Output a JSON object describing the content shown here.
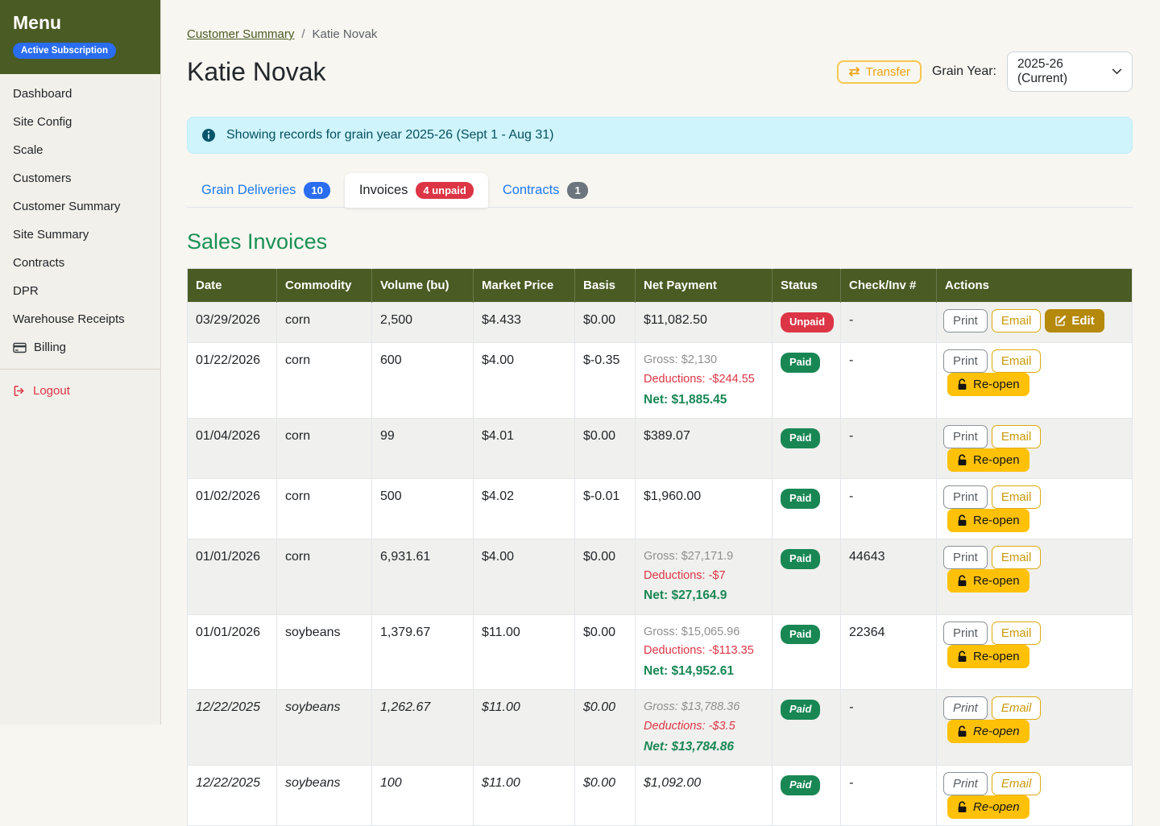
{
  "sidebar": {
    "title": "Menu",
    "subscription_badge": "Active Subscription",
    "items": [
      {
        "label": "Dashboard",
        "icon": null
      },
      {
        "label": "Site Config",
        "icon": null
      },
      {
        "label": "Scale",
        "icon": null
      },
      {
        "label": "Customers",
        "icon": null
      },
      {
        "label": "Customer Summary",
        "icon": null
      },
      {
        "label": "Site Summary",
        "icon": null
      },
      {
        "label": "Contracts",
        "icon": null
      },
      {
        "label": "DPR",
        "icon": null
      },
      {
        "label": "Warehouse Receipts",
        "icon": null
      },
      {
        "label": "Billing",
        "icon": "credit-card-icon"
      }
    ],
    "logout_label": "Logout"
  },
  "header": {
    "breadcrumb_link": "Customer Summary",
    "breadcrumb_separator": "/",
    "breadcrumb_current": "Katie Novak",
    "title": "Katie Novak",
    "transfer_label": "Transfer",
    "transfer_icon": "transfer-arrows-icon",
    "grain_year_label": "Grain Year:",
    "grain_year_value": "2025-26 (Current)"
  },
  "alert": {
    "icon": "info-icon",
    "message": "Showing records for grain year 2025-26 (Sept 1 - Aug 31)"
  },
  "tabs": [
    {
      "label": "Grain Deliveries",
      "badge": "10",
      "badge_style": "blue",
      "active": false
    },
    {
      "label": "Invoices",
      "badge": "4 unpaid",
      "badge_style": "red",
      "active": true
    },
    {
      "label": "Contracts",
      "badge": "1",
      "badge_style": "gray",
      "active": false
    }
  ],
  "section_title": "Sales Invoices",
  "action_defs": {
    "print": {
      "label": "Print",
      "style": "outline-secondary",
      "icon": null
    },
    "email": {
      "label": "Email",
      "style": "outline-warning",
      "icon": null
    },
    "edit": {
      "label": "Edit",
      "style": "solid-edit",
      "icon": "pencil-square-icon"
    },
    "reopen": {
      "label": "Re-open",
      "style": "solid-reopen",
      "icon": "unlock-icon"
    }
  },
  "table": {
    "columns": [
      "Date",
      "Commodity",
      "Volume (bu)",
      "Market Price",
      "Basis",
      "Net Payment",
      "Status",
      "Check/Inv #",
      "Actions"
    ],
    "rows": [
      {
        "date": "03/29/2026",
        "commodity": "corn",
        "volume": "2,500",
        "market_price": "$4.433",
        "basis": "$0.00",
        "net_simple": "$11,082.50",
        "status": "Unpaid",
        "check": "-",
        "actions": [
          "print",
          "email",
          "edit"
        ],
        "italic": false
      },
      {
        "date": "01/22/2026",
        "commodity": "corn",
        "volume": "600",
        "market_price": "$4.00",
        "basis": "$-0.35",
        "net_gross": "Gross: $2,130",
        "net_deductions": "Deductions: -$244.55",
        "net_net": "Net: $1,885.45",
        "status": "Paid",
        "check": "-",
        "actions": [
          "print",
          "email",
          "reopen"
        ],
        "italic": false
      },
      {
        "date": "01/04/2026",
        "commodity": "corn",
        "volume": "99",
        "market_price": "$4.01",
        "basis": "$0.00",
        "net_simple": "$389.07",
        "status": "Paid",
        "check": "-",
        "actions": [
          "print",
          "email",
          "reopen"
        ],
        "italic": false
      },
      {
        "date": "01/02/2026",
        "commodity": "corn",
        "volume": "500",
        "market_price": "$4.02",
        "basis": "$-0.01",
        "net_simple": "$1,960.00",
        "status": "Paid",
        "check": "-",
        "actions": [
          "print",
          "email",
          "reopen"
        ],
        "italic": false
      },
      {
        "date": "01/01/2026",
        "commodity": "corn",
        "volume": "6,931.61",
        "market_price": "$4.00",
        "basis": "$0.00",
        "net_gross": "Gross: $27,171.9",
        "net_deductions": "Deductions: -$7",
        "net_net": "Net: $27,164.9",
        "status": "Paid",
        "check": "44643",
        "actions": [
          "print",
          "email",
          "reopen"
        ],
        "italic": false
      },
      {
        "date": "01/01/2026",
        "commodity": "soybeans",
        "volume": "1,379.67",
        "market_price": "$11.00",
        "basis": "$0.00",
        "net_gross": "Gross: $15,065.96",
        "net_deductions": "Deductions: -$113.35",
        "net_net": "Net: $14,952.61",
        "status": "Paid",
        "check": "22364",
        "actions": [
          "print",
          "email",
          "reopen"
        ],
        "italic": false
      },
      {
        "date": "12/22/2025",
        "commodity": "soybeans",
        "volume": "1,262.67",
        "market_price": "$11.00",
        "basis": "$0.00",
        "net_gross": "Gross: $13,788.36",
        "net_deductions": "Deductions: -$3.5",
        "net_net": "Net: $13,784.86",
        "status": "Paid",
        "check": "-",
        "actions": [
          "print",
          "email",
          "reopen"
        ],
        "italic": true
      },
      {
        "date": "12/22/2025",
        "commodity": "soybeans",
        "volume": "100",
        "market_price": "$11.00",
        "basis": "$0.00",
        "net_simple": "$1,092.00",
        "status": "Paid",
        "check": "-",
        "actions": [
          "print",
          "email",
          "reopen"
        ],
        "italic": true
      }
    ]
  },
  "status_styles": {
    "Paid": "paid",
    "Unpaid": "unpaid"
  },
  "colors": {
    "header_green": "#4a5b23",
    "heading_green": "#199155",
    "success": "#198754",
    "danger": "#dc3545",
    "warning": "#ffc107",
    "edit_amber": "#b5890b",
    "primary_blue": "#2a6df0",
    "info_bg": "#cff4fc",
    "info_text": "#055160"
  }
}
